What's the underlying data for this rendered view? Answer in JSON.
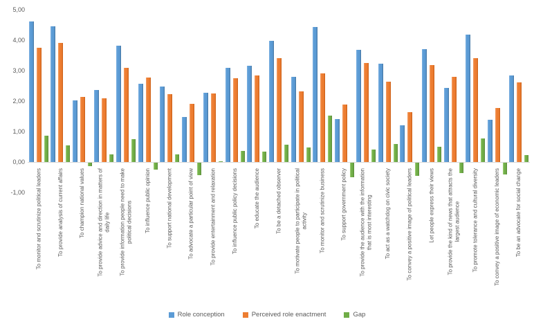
{
  "chart_data": {
    "type": "bar",
    "title": "",
    "xlabel": "",
    "ylabel": "",
    "ylim": [
      -1,
      5
    ],
    "grid": false,
    "legend_position": "bottom",
    "decimal_style": "comma",
    "yticks": [
      {
        "label": "5,00",
        "value": 5
      },
      {
        "label": "4,00",
        "value": 4
      },
      {
        "label": "3,00",
        "value": 3
      },
      {
        "label": "2,00",
        "value": 2
      },
      {
        "label": "1,00",
        "value": 1
      },
      {
        "label": "0,00",
        "value": 0
      },
      {
        "label": "-1,00",
        "value": -1
      }
    ],
    "categories": [
      "To monitor and scrutinize political leaders",
      "To provide analysis of current affairs",
      "To champion national values",
      "To provide advice and direction in matters of\ndaily life",
      "To provide information people need to make\npolitical decisions",
      "To influence public opinion",
      "To support national development",
      "To advocate a particular point of view",
      "To provide entertainment and relaxation",
      "To influence public policy decisions",
      "To educate the audience",
      "To be a detached observer",
      "To motivate people to participate in political\nactivity",
      "To monitor and scrutinize business",
      "To support government policy",
      "To provide the audience with the information\nthat is most interesting",
      "To act as a watchdog on civic society",
      "To convey a positive image of political leaders",
      "Let people express their views",
      "To provide the kind of news that attracts the\nlargest audience",
      "To promote tolerance and cultural diversity",
      "To convey a positive image of economic leaders",
      "To be an advocate for social change"
    ],
    "series": [
      {
        "name": "Role conception",
        "color": "#5B9BD5",
        "values": [
          4.62,
          4.45,
          2.02,
          2.36,
          3.82,
          2.56,
          2.48,
          1.48,
          2.28,
          3.1,
          3.17,
          3.98,
          2.79,
          4.43,
          1.4,
          3.68,
          3.22,
          1.2,
          3.7,
          2.44,
          4.18,
          1.39,
          2.85
        ]
      },
      {
        "name": "Perceived role enactment",
        "color": "#ED7D31",
        "values": [
          3.75,
          3.9,
          2.13,
          2.1,
          3.08,
          2.78,
          2.23,
          1.9,
          2.26,
          2.74,
          2.83,
          3.42,
          2.31,
          2.91,
          1.88,
          3.26,
          2.64,
          1.64,
          3.19,
          2.79,
          3.4,
          1.77,
          2.62
        ]
      },
      {
        "name": "Gap",
        "color": "#70AD47",
        "values": [
          0.87,
          0.55,
          -0.11,
          0.26,
          0.74,
          -0.22,
          0.25,
          -0.42,
          0.02,
          0.36,
          0.34,
          0.56,
          0.48,
          1.52,
          -0.48,
          0.42,
          0.58,
          -0.44,
          0.51,
          -0.35,
          0.78,
          -0.38,
          0.23
        ]
      }
    ]
  }
}
